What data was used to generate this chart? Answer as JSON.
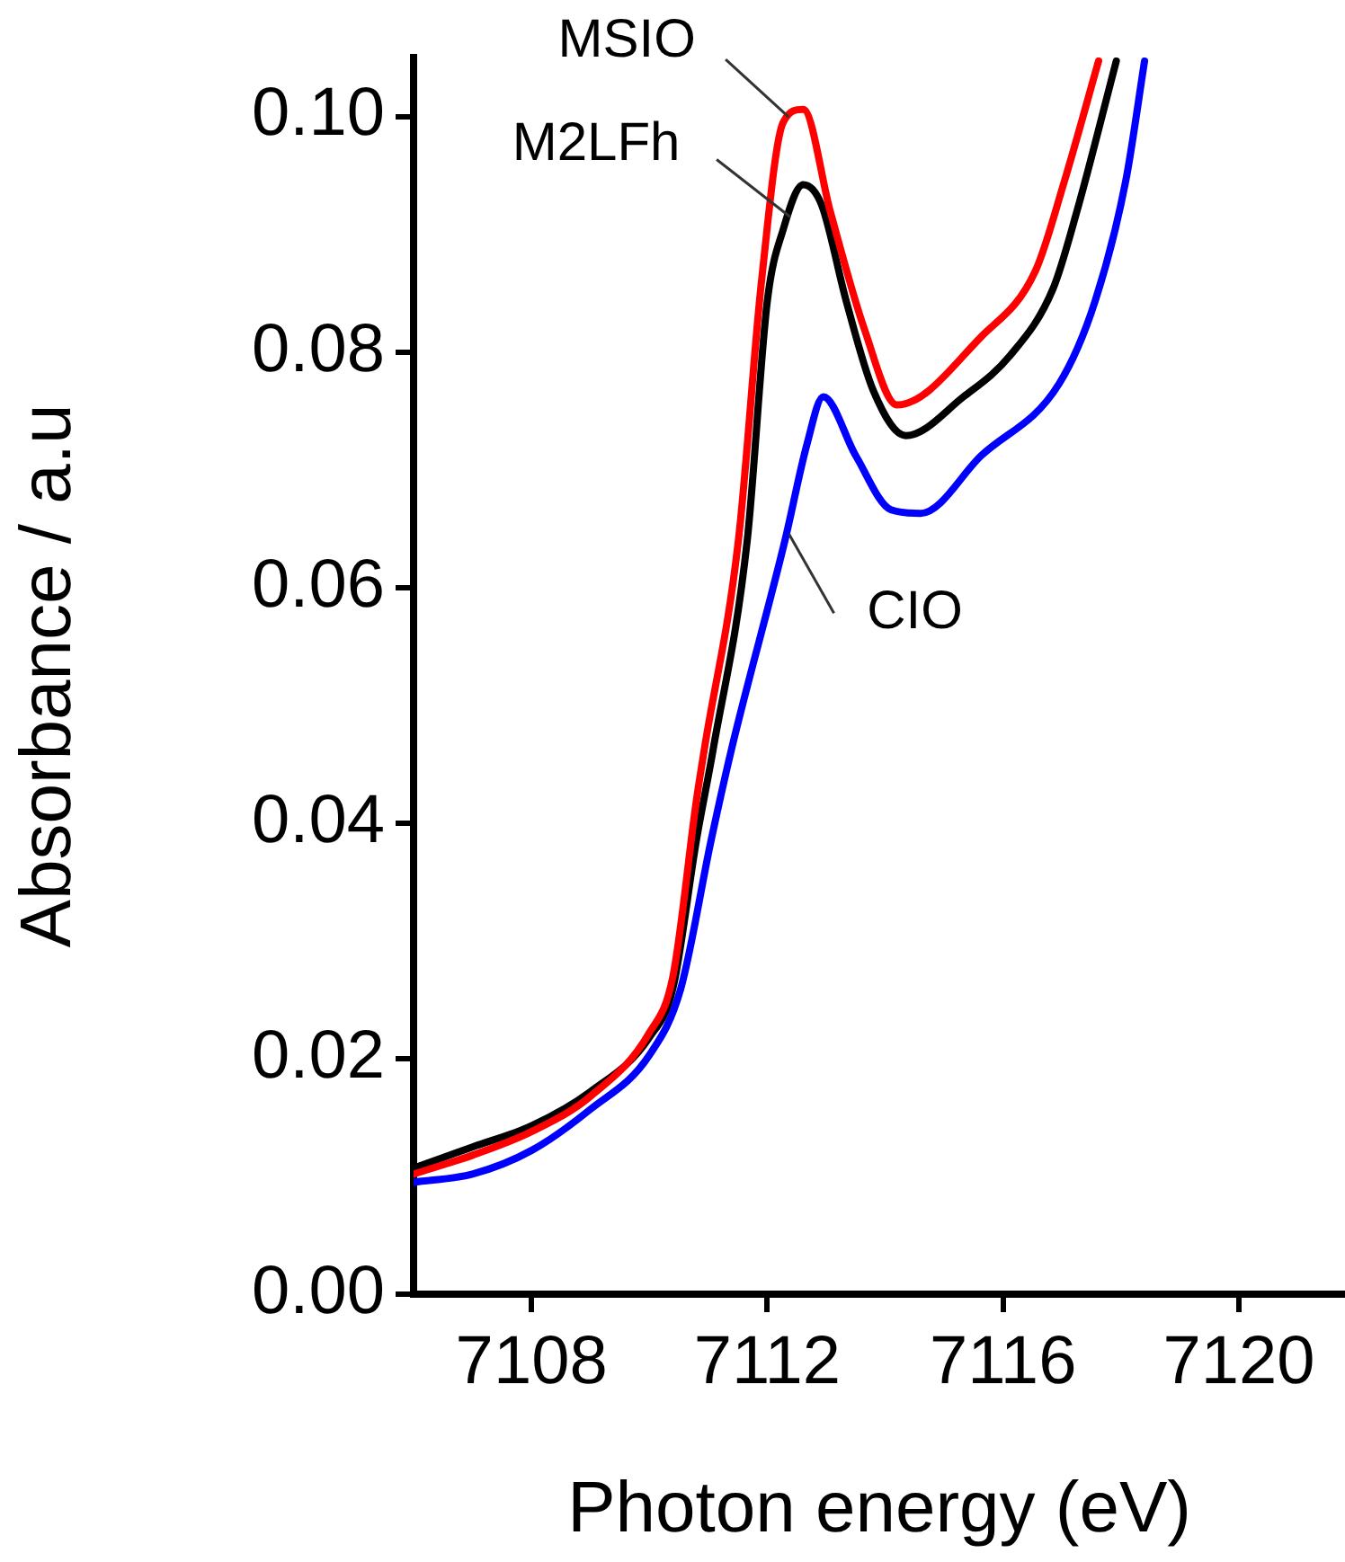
{
  "chart_data": {
    "type": "line",
    "xlabel": "Photon energy (eV)",
    "ylabel": "Absorbance / a.u",
    "xlim": [
      7106,
      7121.8
    ],
    "xticks": [
      7108,
      7112,
      7116,
      7120
    ],
    "ylim": [
      0,
      0.105
    ],
    "yticks": [
      {
        "value": 0,
        "label": "0.00"
      },
      {
        "value": 0.02,
        "label": "0.02"
      },
      {
        "value": 0.04,
        "label": "0.04"
      },
      {
        "value": 0.06,
        "label": "0.06"
      },
      {
        "value": 0.08,
        "label": "0.08"
      },
      {
        "value": 0.1,
        "label": "0.10"
      }
    ],
    "grid": false,
    "legend": false,
    "marker": "none",
    "line_style": "solid",
    "series": [
      {
        "color": "#ff0000",
        "x": [
          7106,
          7107,
          7108,
          7109,
          7110,
          7110.4,
          7110.8,
          7110.93,
          7111.51,
          7111.9,
          7112.27,
          7112.61,
          7113.07,
          7113.65,
          7114.2,
          7115.63,
          7116.55,
          7117.04,
          7117.62
        ],
        "values": [
          0.0102,
          0.0118,
          0.0138,
          0.0168,
          0.0222,
          0.027,
          0.042,
          0.0462,
          0.064,
          0.0859,
          0.0995,
          0.1006,
          0.0919,
          0.0819,
          0.0755,
          0.0813,
          0.0869,
          0.0945,
          0.1047
        ]
      },
      {
        "color": "#000000",
        "x": [
          7106,
          7107,
          7108,
          7109,
          7110,
          7110.4,
          7110.8,
          7111.08,
          7111.66,
          7112.0,
          7112.27,
          7112.61,
          7112.92,
          7113.34,
          7113.8,
          7114.35,
          7115.33,
          7116.12,
          7116.85,
          7117.25,
          7117.92
        ],
        "values": [
          0.0107,
          0.0125,
          0.0143,
          0.0172,
          0.0218,
          0.026,
          0.0386,
          0.0462,
          0.064,
          0.0843,
          0.0904,
          0.0942,
          0.0925,
          0.0843,
          0.0767,
          0.0729,
          0.0762,
          0.0797,
          0.0854,
          0.0919,
          0.1047
        ]
      },
      {
        "color": "#0000ff",
        "x": [
          7106,
          7107,
          7108,
          7109,
          7110,
          7110.53,
          7111.05,
          7111.39,
          7112.3,
          7112.67,
          7112.95,
          7113.5,
          7114.1,
          7114.6,
          7115.63,
          7116.95,
          7117.56,
          7118.08,
          7118.4
        ],
        "values": [
          0.0095,
          0.0102,
          0.0122,
          0.0157,
          0.0203,
          0.0259,
          0.0386,
          0.0462,
          0.064,
          0.0721,
          0.0762,
          0.0712,
          0.0666,
          0.0663,
          0.0712,
          0.0773,
          0.0843,
          0.0945,
          0.1047
        ]
      }
    ],
    "annotations": [
      {
        "text": "MSIO",
        "x": 7112.27,
        "y": 0.0995
      },
      {
        "text": "M2LFh",
        "x": 7112.3,
        "y": 0.091
      },
      {
        "text": "CIO",
        "x": 7112.46,
        "y": 0.065
      }
    ]
  }
}
